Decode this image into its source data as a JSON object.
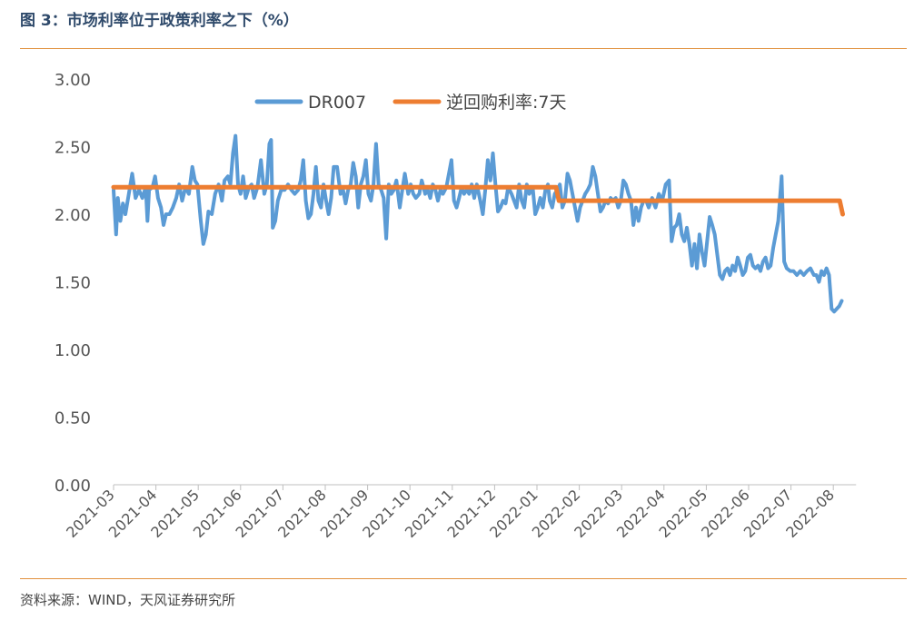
{
  "header": {
    "title": "图 3：市场利率位于政策利率之下（%）"
  },
  "footer": {
    "source": "资料来源：WIND，天风证券研究所"
  },
  "colors": {
    "dr007": "#5b9bd5",
    "reverse_repo": "#ed7d31",
    "rule": "#e1913e"
  },
  "chart_data": {
    "type": "line",
    "title": "市场利率位于政策利率之下",
    "ylabel": "%",
    "ylim": [
      0,
      3
    ],
    "yticks": [
      "0.00",
      "0.50",
      "1.00",
      "1.50",
      "2.00",
      "2.50",
      "3.00"
    ],
    "xticks": [
      "2021-03",
      "2021-04",
      "2021-05",
      "2021-06",
      "2021-07",
      "2021-08",
      "2021-09",
      "2021-10",
      "2021-11",
      "2021-12",
      "2022-01",
      "2022-02",
      "2022-03",
      "2022-04",
      "2022-05",
      "2022-06",
      "2022-07",
      "2022-08"
    ],
    "grid": false,
    "legend_position": "top",
    "series": [
      {
        "name": "DR007",
        "points": [
          [
            0.0,
            2.18
          ],
          [
            0.06,
            1.85
          ],
          [
            0.1,
            2.12
          ],
          [
            0.16,
            1.95
          ],
          [
            0.22,
            2.08
          ],
          [
            0.28,
            2.0
          ],
          [
            0.36,
            2.15
          ],
          [
            0.44,
            2.3
          ],
          [
            0.52,
            2.12
          ],
          [
            0.6,
            2.18
          ],
          [
            0.68,
            2.12
          ],
          [
            0.76,
            2.2
          ],
          [
            0.8,
            1.95
          ],
          [
            0.84,
            2.18
          ],
          [
            0.92,
            2.2
          ],
          [
            0.98,
            2.28
          ],
          [
            1.05,
            2.12
          ],
          [
            1.12,
            2.05
          ],
          [
            1.18,
            1.92
          ],
          [
            1.24,
            2.0
          ],
          [
            1.32,
            2.0
          ],
          [
            1.4,
            2.05
          ],
          [
            1.48,
            2.12
          ],
          [
            1.55,
            2.22
          ],
          [
            1.62,
            2.1
          ],
          [
            1.7,
            2.2
          ],
          [
            1.78,
            2.15
          ],
          [
            1.86,
            2.35
          ],
          [
            1.92,
            2.25
          ],
          [
            1.98,
            2.22
          ],
          [
            2.06,
            1.95
          ],
          [
            2.12,
            1.78
          ],
          [
            2.18,
            1.85
          ],
          [
            2.24,
            2.02
          ],
          [
            2.32,
            2.0
          ],
          [
            2.4,
            2.15
          ],
          [
            2.48,
            2.22
          ],
          [
            2.56,
            2.1
          ],
          [
            2.62,
            2.25
          ],
          [
            2.7,
            2.28
          ],
          [
            2.76,
            2.22
          ],
          [
            2.82,
            2.45
          ],
          [
            2.88,
            2.58
          ],
          [
            2.94,
            2.22
          ],
          [
            3.0,
            2.15
          ],
          [
            3.06,
            2.28
          ],
          [
            3.12,
            2.12
          ],
          [
            3.2,
            2.2
          ],
          [
            3.26,
            2.22
          ],
          [
            3.32,
            2.12
          ],
          [
            3.4,
            2.2
          ],
          [
            3.48,
            2.4
          ],
          [
            3.56,
            2.15
          ],
          [
            3.62,
            2.22
          ],
          [
            3.68,
            2.52
          ],
          [
            3.72,
            2.55
          ],
          [
            3.76,
            1.9
          ],
          [
            3.82,
            1.95
          ],
          [
            3.88,
            2.1
          ],
          [
            3.96,
            2.18
          ],
          [
            4.04,
            2.18
          ],
          [
            4.12,
            2.22
          ],
          [
            4.2,
            2.18
          ],
          [
            4.28,
            2.15
          ],
          [
            4.36,
            2.18
          ],
          [
            4.42,
            2.25
          ],
          [
            4.48,
            2.4
          ],
          [
            4.54,
            2.1
          ],
          [
            4.6,
            1.97
          ],
          [
            4.66,
            2.0
          ],
          [
            4.72,
            2.15
          ],
          [
            4.78,
            2.35
          ],
          [
            4.84,
            2.1
          ],
          [
            4.9,
            2.05
          ],
          [
            4.96,
            2.22
          ],
          [
            5.02,
            2.1
          ],
          [
            5.08,
            2.0
          ],
          [
            5.14,
            2.12
          ],
          [
            5.2,
            2.35
          ],
          [
            5.28,
            2.35
          ],
          [
            5.36,
            2.15
          ],
          [
            5.42,
            2.18
          ],
          [
            5.48,
            2.08
          ],
          [
            5.54,
            2.18
          ],
          [
            5.6,
            2.22
          ],
          [
            5.66,
            2.38
          ],
          [
            5.72,
            2.28
          ],
          [
            5.78,
            2.05
          ],
          [
            5.84,
            2.22
          ],
          [
            5.9,
            2.28
          ],
          [
            5.96,
            2.4
          ],
          [
            6.02,
            2.15
          ],
          [
            6.08,
            2.1
          ],
          [
            6.14,
            2.22
          ],
          [
            6.2,
            2.52
          ],
          [
            6.26,
            2.22
          ],
          [
            6.32,
            2.18
          ],
          [
            6.38,
            2.12
          ],
          [
            6.44,
            1.82
          ],
          [
            6.5,
            2.22
          ],
          [
            6.56,
            2.15
          ],
          [
            6.62,
            2.18
          ],
          [
            6.68,
            2.25
          ],
          [
            6.76,
            2.05
          ],
          [
            6.82,
            2.18
          ],
          [
            6.88,
            2.3
          ],
          [
            6.96,
            2.15
          ],
          [
            7.02,
            2.22
          ],
          [
            7.08,
            2.15
          ],
          [
            7.14,
            2.12
          ],
          [
            7.22,
            2.15
          ],
          [
            7.28,
            2.25
          ],
          [
            7.36,
            2.15
          ],
          [
            7.42,
            2.18
          ],
          [
            7.48,
            2.12
          ],
          [
            7.54,
            2.22
          ],
          [
            7.6,
            2.18
          ],
          [
            7.66,
            2.1
          ],
          [
            7.72,
            2.18
          ],
          [
            7.78,
            2.15
          ],
          [
            7.86,
            2.2
          ],
          [
            7.92,
            2.3
          ],
          [
            7.98,
            2.4
          ],
          [
            8.04,
            2.1
          ],
          [
            8.1,
            2.05
          ],
          [
            8.16,
            2.12
          ],
          [
            8.22,
            2.2
          ],
          [
            8.28,
            2.15
          ],
          [
            8.34,
            2.18
          ],
          [
            8.4,
            2.15
          ],
          [
            8.46,
            2.22
          ],
          [
            8.52,
            2.12
          ],
          [
            8.58,
            2.22
          ],
          [
            8.66,
            2.1
          ],
          [
            8.72,
            2.0
          ],
          [
            8.78,
            2.18
          ],
          [
            8.84,
            2.4
          ],
          [
            8.9,
            2.25
          ],
          [
            8.96,
            2.45
          ],
          [
            9.02,
            2.22
          ],
          [
            9.08,
            2.02
          ],
          [
            9.14,
            2.05
          ],
          [
            9.2,
            2.1
          ],
          [
            9.26,
            2.08
          ],
          [
            9.32,
            2.2
          ],
          [
            9.4,
            2.15
          ],
          [
            9.46,
            2.1
          ],
          [
            9.52,
            2.05
          ],
          [
            9.58,
            2.22
          ],
          [
            9.64,
            2.1
          ],
          [
            9.7,
            2.05
          ],
          [
            9.76,
            2.22
          ],
          [
            9.82,
            2.15
          ],
          [
            9.9,
            2.2
          ],
          [
            9.96,
            2.0
          ],
          [
            10.02,
            2.05
          ],
          [
            10.08,
            2.12
          ],
          [
            10.14,
            2.05
          ],
          [
            10.2,
            2.18
          ],
          [
            10.26,
            2.22
          ],
          [
            10.3,
            2.1
          ],
          [
            10.36,
            2.05
          ],
          [
            10.42,
            2.15
          ],
          [
            10.48,
            2.18
          ],
          [
            10.54,
            2.22
          ],
          [
            10.6,
            2.05
          ],
          [
            10.66,
            2.1
          ],
          [
            10.72,
            2.3
          ],
          [
            10.78,
            2.25
          ],
          [
            10.84,
            2.15
          ],
          [
            10.9,
            2.05
          ],
          [
            10.96,
            1.95
          ],
          [
            11.02,
            2.05
          ],
          [
            11.08,
            2.1
          ],
          [
            11.14,
            2.15
          ],
          [
            11.2,
            2.18
          ],
          [
            11.26,
            2.22
          ],
          [
            11.32,
            2.35
          ],
          [
            11.38,
            2.28
          ],
          [
            11.44,
            2.15
          ],
          [
            11.5,
            2.02
          ],
          [
            11.56,
            2.05
          ],
          [
            11.62,
            2.1
          ],
          [
            11.68,
            2.08
          ],
          [
            11.74,
            2.12
          ],
          [
            11.8,
            2.1
          ],
          [
            11.86,
            2.12
          ],
          [
            11.92,
            2.05
          ],
          [
            11.98,
            2.1
          ],
          [
            12.04,
            2.25
          ],
          [
            12.1,
            2.22
          ],
          [
            12.16,
            2.15
          ],
          [
            12.22,
            2.1
          ],
          [
            12.28,
            1.92
          ],
          [
            12.34,
            2.05
          ],
          [
            12.4,
            1.95
          ],
          [
            12.46,
            2.05
          ],
          [
            12.52,
            2.1
          ],
          [
            12.58,
            2.1
          ],
          [
            12.64,
            2.05
          ],
          [
            12.72,
            2.12
          ],
          [
            12.8,
            2.05
          ],
          [
            12.88,
            2.15
          ],
          [
            12.96,
            2.1
          ],
          [
            13.04,
            2.22
          ],
          [
            13.12,
            2.25
          ],
          [
            13.18,
            1.8
          ],
          [
            13.24,
            1.9
          ],
          [
            13.3,
            1.92
          ],
          [
            13.36,
            2.0
          ],
          [
            13.42,
            1.85
          ],
          [
            13.48,
            1.8
          ],
          [
            13.54,
            1.9
          ],
          [
            13.6,
            1.78
          ],
          [
            13.66,
            1.62
          ],
          [
            13.72,
            1.78
          ],
          [
            13.78,
            1.6
          ],
          [
            13.84,
            1.85
          ],
          [
            13.9,
            1.72
          ],
          [
            13.96,
            1.62
          ],
          [
            14.02,
            1.8
          ],
          [
            14.08,
            1.98
          ],
          [
            14.14,
            1.92
          ],
          [
            14.2,
            1.85
          ],
          [
            14.26,
            1.7
          ],
          [
            14.32,
            1.55
          ],
          [
            14.38,
            1.52
          ],
          [
            14.44,
            1.58
          ],
          [
            14.5,
            1.6
          ],
          [
            14.56,
            1.55
          ],
          [
            14.62,
            1.62
          ],
          [
            14.68,
            1.58
          ],
          [
            14.74,
            1.68
          ],
          [
            14.8,
            1.62
          ],
          [
            14.86,
            1.55
          ],
          [
            14.92,
            1.58
          ],
          [
            14.98,
            1.68
          ],
          [
            15.04,
            1.7
          ],
          [
            15.1,
            1.62
          ],
          [
            15.16,
            1.6
          ],
          [
            15.22,
            1.62
          ],
          [
            15.28,
            1.58
          ],
          [
            15.34,
            1.65
          ],
          [
            15.4,
            1.68
          ],
          [
            15.46,
            1.6
          ],
          [
            15.52,
            1.62
          ],
          [
            15.58,
            1.75
          ],
          [
            15.64,
            1.85
          ],
          [
            15.7,
            1.95
          ],
          [
            15.78,
            2.28
          ],
          [
            15.84,
            1.65
          ],
          [
            15.9,
            1.6
          ],
          [
            15.98,
            1.58
          ],
          [
            16.06,
            1.58
          ],
          [
            16.14,
            1.55
          ],
          [
            16.22,
            1.58
          ],
          [
            16.3,
            1.55
          ],
          [
            16.38,
            1.58
          ],
          [
            16.46,
            1.6
          ],
          [
            16.54,
            1.55
          ],
          [
            16.6,
            1.55
          ],
          [
            16.66,
            1.5
          ],
          [
            16.72,
            1.58
          ],
          [
            16.78,
            1.55
          ],
          [
            16.84,
            1.6
          ],
          [
            16.9,
            1.55
          ],
          [
            16.96,
            1.3
          ],
          [
            17.02,
            1.28
          ],
          [
            17.08,
            1.3
          ],
          [
            17.14,
            1.32
          ],
          [
            17.2,
            1.36
          ]
        ]
      },
      {
        "name": "逆回购利率:7天",
        "points": [
          [
            0.0,
            2.2
          ],
          [
            10.45,
            2.2
          ],
          [
            10.52,
            2.1
          ],
          [
            17.15,
            2.1
          ],
          [
            17.22,
            2.0
          ]
        ]
      }
    ]
  }
}
